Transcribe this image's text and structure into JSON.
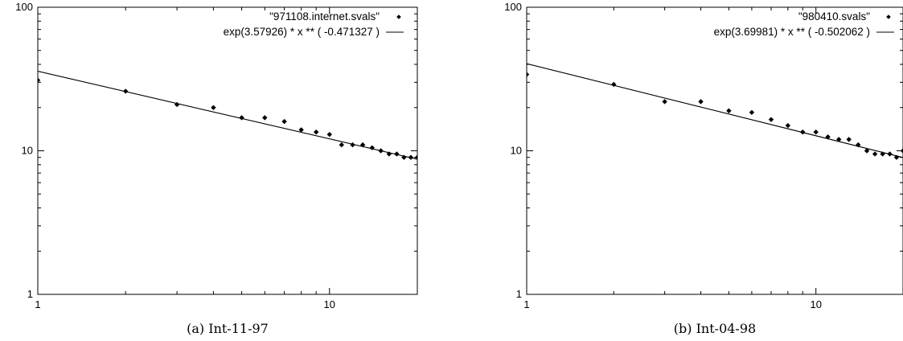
{
  "chart_data": [
    {
      "type": "scatter",
      "caption": "(a) Int-11-97",
      "x_scale": "log",
      "y_scale": "log",
      "xlim": [
        1,
        20
      ],
      "ylim": [
        1,
        100
      ],
      "x_ticks": [
        {
          "value": 1,
          "label": "1"
        },
        {
          "value": 10,
          "label": "10"
        }
      ],
      "y_ticks": [
        {
          "value": 1,
          "label": "1"
        },
        {
          "value": 10,
          "label": "10"
        },
        {
          "value": 100,
          "label": "100"
        }
      ],
      "grid": false,
      "legend_position": "top-right",
      "series": [
        {
          "name": "\"971108.internet.svals\"",
          "style": "points",
          "x": [
            1,
            2,
            3,
            4,
            5,
            6,
            7,
            8,
            9,
            10,
            11,
            12,
            13,
            14,
            15,
            16,
            17,
            18,
            19,
            20
          ],
          "y": [
            31,
            26,
            21,
            20,
            17,
            17,
            16,
            14,
            13.5,
            13,
            11,
            11,
            11,
            10.5,
            10,
            9.5,
            9.5,
            9,
            9,
            9
          ]
        },
        {
          "name": "exp(3.57926)  * x ** (  -0.471327 )",
          "style": "line",
          "fit": {
            "a": 3.57926,
            "b": -0.471327
          }
        }
      ]
    },
    {
      "type": "scatter",
      "caption": "(b) Int-04-98",
      "x_scale": "log",
      "y_scale": "log",
      "xlim": [
        1,
        20
      ],
      "ylim": [
        1,
        100
      ],
      "x_ticks": [
        {
          "value": 1,
          "label": "1"
        },
        {
          "value": 10,
          "label": "10"
        }
      ],
      "y_ticks": [
        {
          "value": 1,
          "label": "1"
        },
        {
          "value": 10,
          "label": "10"
        },
        {
          "value": 100,
          "label": "100"
        }
      ],
      "grid": false,
      "legend_position": "top-right",
      "series": [
        {
          "name": "\"980410.svals\"",
          "style": "points",
          "x": [
            1,
            2,
            3,
            4,
            5,
            6,
            7,
            8,
            9,
            10,
            11,
            12,
            13,
            14,
            15,
            16,
            17,
            18,
            19,
            20
          ],
          "y": [
            34,
            29,
            22,
            22,
            19,
            18.5,
            16.5,
            15,
            13.5,
            13.5,
            12.5,
            12,
            12,
            11,
            10,
            9.5,
            9.5,
            9.5,
            9,
            10
          ]
        },
        {
          "name": "exp(3.69981)  * x ** (  -0.502062 )",
          "style": "line",
          "fit": {
            "a": 3.69981,
            "b": -0.502062
          }
        }
      ]
    }
  ]
}
